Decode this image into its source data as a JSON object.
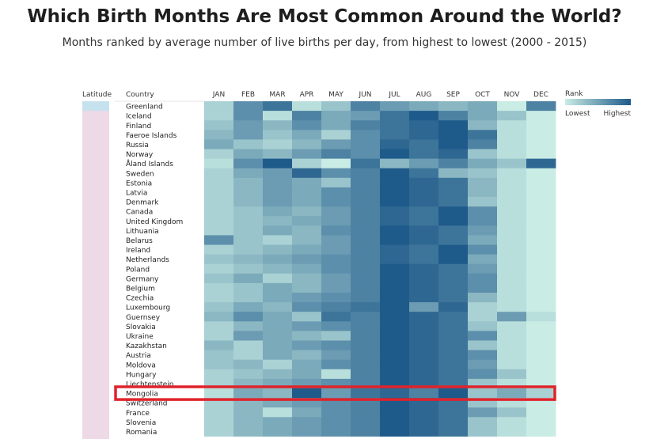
{
  "header": {
    "title": "Which Birth Months Are Most Common Around the World?",
    "subtitle": "Months ranked by average number of live births per day, from highest to lowest (2000 - 2015)"
  },
  "table_headers": {
    "latitude": "Latitude",
    "country": "Country"
  },
  "legend": {
    "title": "Rank",
    "low": "Lowest",
    "high": "Highest"
  },
  "highlight": {
    "country": "Mongolia",
    "color": "#e0232b"
  },
  "colors": {
    "lowest": "#c9ece4",
    "highest": "#1e5a8a",
    "latitude_band": "#eddae6",
    "latitude_top": "#c7e2ef"
  },
  "chart_data": {
    "type": "heatmap",
    "title": "Which Birth Months Are Most Common Around the World?",
    "value_scale": "rank 1 (lowest) to 12 (highest)",
    "months": [
      "JAN",
      "FEB",
      "MAR",
      "APR",
      "MAY",
      "JUN",
      "JUL",
      "AUG",
      "SEP",
      "OCT",
      "NOV",
      "DEC"
    ],
    "countries": [
      "Greenland",
      "Iceland",
      "Finland",
      "Faeroe Islands",
      "Russia",
      "Norway",
      "Åland Islands",
      "Sweden",
      "Estonia",
      "Latvia",
      "Denmark",
      "Canada",
      "United Kingdom",
      "Lithuania",
      "Belarus",
      "Ireland",
      "Netherlands",
      "Poland",
      "Germany",
      "Belgium",
      "Czechia",
      "Luxembourg",
      "Guernsey",
      "Slovakia",
      "Ukraine",
      "Kazakhstan",
      "Austria",
      "Moldova",
      "Hungary",
      "Liechtenstein",
      "Mongolia",
      "Switzerland",
      "France",
      "Slovenia",
      "Romania"
    ],
    "ranks": [
      [
        3,
        8,
        10,
        2,
        4,
        9,
        7,
        6,
        5,
        6,
        1,
        9
      ],
      [
        3,
        8,
        2,
        9,
        6,
        7,
        10,
        12,
        9,
        6,
        4,
        1
      ],
      [
        4,
        7,
        5,
        8,
        6,
        9,
        10,
        11,
        12,
        5,
        2,
        1
      ],
      [
        5,
        7,
        4,
        6,
        3,
        8,
        10,
        11,
        12,
        10,
        2,
        1
      ],
      [
        6,
        4,
        3,
        5,
        7,
        8,
        11,
        10,
        12,
        9,
        2,
        1
      ],
      [
        3,
        6,
        5,
        7,
        9,
        8,
        12,
        10,
        11,
        4,
        2,
        1
      ],
      [
        2,
        8,
        12,
        3,
        1,
        10,
        5,
        7,
        9,
        6,
        4,
        11
      ],
      [
        3,
        6,
        7,
        11,
        8,
        9,
        12,
        10,
        5,
        4,
        2,
        1
      ],
      [
        3,
        5,
        7,
        6,
        4,
        9,
        12,
        11,
        10,
        5,
        2,
        1
      ],
      [
        3,
        5,
        7,
        6,
        8,
        9,
        12,
        11,
        10,
        5,
        2,
        1
      ],
      [
        3,
        5,
        7,
        6,
        8,
        9,
        12,
        11,
        10,
        4,
        2,
        1
      ],
      [
        3,
        4,
        6,
        5,
        7,
        9,
        11,
        10,
        12,
        8,
        2,
        1
      ],
      [
        3,
        4,
        5,
        6,
        7,
        9,
        11,
        10,
        12,
        8,
        2,
        1
      ],
      [
        3,
        4,
        6,
        5,
        8,
        9,
        12,
        11,
        10,
        7,
        2,
        1
      ],
      [
        8,
        4,
        3,
        5,
        7,
        9,
        12,
        11,
        10,
        6,
        2,
        1
      ],
      [
        3,
        4,
        5,
        6,
        7,
        9,
        11,
        10,
        12,
        8,
        2,
        1
      ],
      [
        4,
        5,
        6,
        7,
        8,
        9,
        11,
        10,
        12,
        6,
        2,
        1
      ],
      [
        3,
        4,
        5,
        6,
        8,
        9,
        12,
        11,
        10,
        7,
        2,
        1
      ],
      [
        4,
        6,
        3,
        5,
        7,
        9,
        12,
        11,
        10,
        8,
        2,
        1
      ],
      [
        3,
        4,
        6,
        5,
        7,
        9,
        12,
        11,
        10,
        8,
        2,
        1
      ],
      [
        3,
        4,
        6,
        7,
        8,
        9,
        12,
        11,
        10,
        5,
        2,
        1
      ],
      [
        4,
        6,
        5,
        8,
        9,
        10,
        12,
        7,
        11,
        3,
        2,
        1
      ],
      [
        5,
        8,
        6,
        4,
        10,
        9,
        12,
        11,
        10,
        3,
        7,
        2
      ],
      [
        3,
        5,
        6,
        7,
        8,
        9,
        12,
        11,
        10,
        4,
        2,
        1
      ],
      [
        3,
        7,
        6,
        5,
        4,
        9,
        12,
        11,
        10,
        8,
        2,
        1
      ],
      [
        5,
        3,
        6,
        7,
        8,
        9,
        12,
        11,
        10,
        4,
        2,
        1
      ],
      [
        4,
        3,
        6,
        5,
        7,
        9,
        12,
        11,
        10,
        8,
        2,
        1
      ],
      [
        4,
        5,
        3,
        6,
        8,
        9,
        12,
        11,
        10,
        7,
        2,
        1
      ],
      [
        3,
        4,
        5,
        6,
        2,
        9,
        12,
        11,
        10,
        8,
        4,
        1
      ],
      [
        3,
        5,
        6,
        7,
        8,
        9,
        12,
        11,
        10,
        4,
        2,
        1
      ],
      [
        2,
        6,
        5,
        12,
        7,
        10,
        11,
        9,
        12,
        4,
        6,
        3
      ],
      [
        3,
        5,
        6,
        7,
        8,
        9,
        12,
        11,
        10,
        4,
        2,
        1
      ],
      [
        3,
        5,
        2,
        6,
        8,
        9,
        12,
        11,
        10,
        7,
        4,
        1
      ],
      [
        3,
        5,
        6,
        7,
        8,
        9,
        12,
        11,
        10,
        4,
        2,
        1
      ],
      [
        3,
        5,
        6,
        7,
        8,
        9,
        12,
        11,
        10,
        4,
        2,
        1
      ]
    ]
  }
}
